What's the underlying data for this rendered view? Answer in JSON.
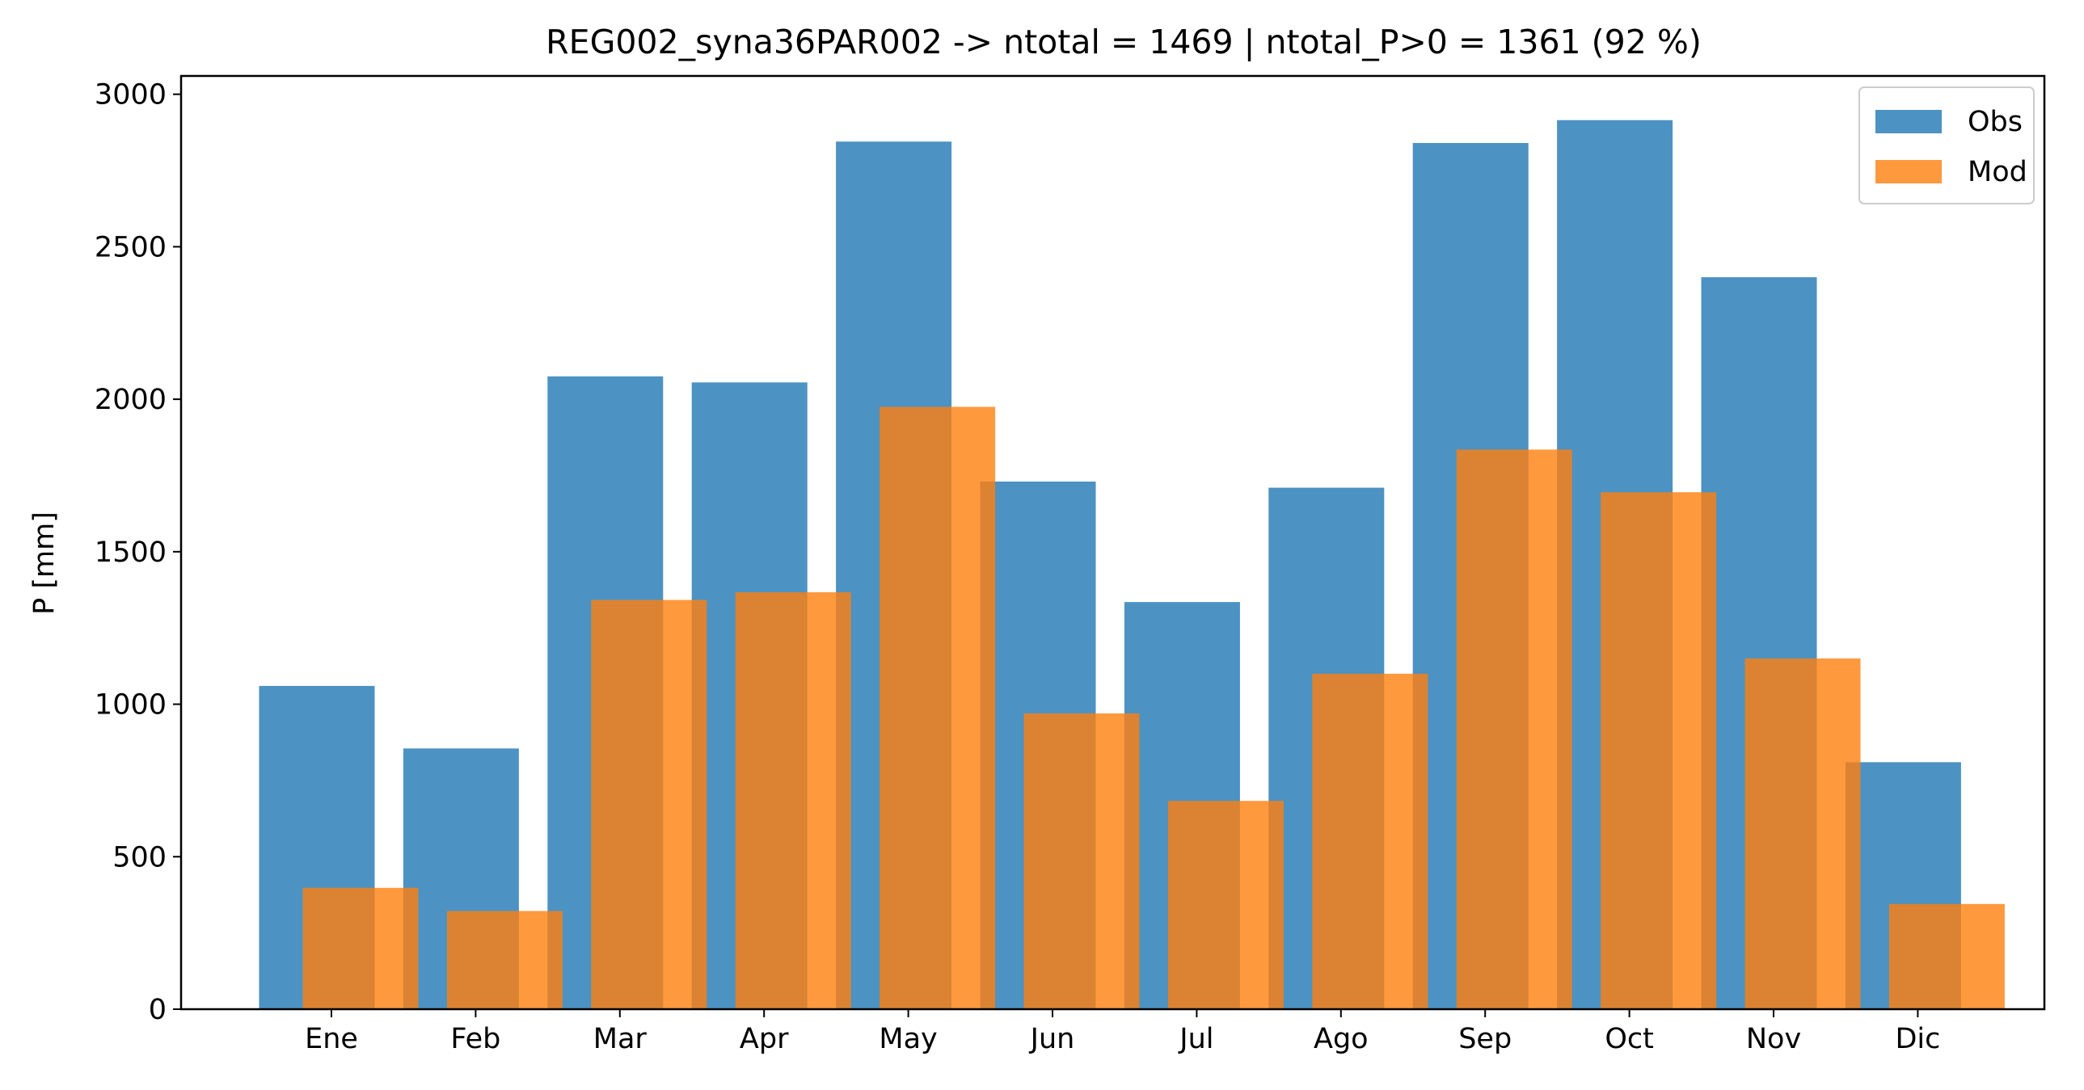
{
  "chart_data": {
    "type": "bar",
    "title": "REG002_syna36PAR002 -> ntotal = 1469 | ntotal_P>0 = 1361 (92 %)",
    "xlabel": "",
    "ylabel": "P [mm]",
    "ylim": [
      0,
      3060
    ],
    "yticks": [
      0,
      500,
      1000,
      1500,
      2000,
      2500,
      3000
    ],
    "categories": [
      "Ene",
      "Feb",
      "Mar",
      "Apr",
      "May",
      "Jun",
      "Jul",
      "Ago",
      "Sep",
      "Oct",
      "Nov",
      "Dic"
    ],
    "series": [
      {
        "name": "Obs",
        "color": "#1f77b4",
        "opacity": 0.8,
        "values": [
          1060,
          855,
          2075,
          2055,
          2845,
          1730,
          1335,
          1710,
          2840,
          2915,
          2400,
          810
        ]
      },
      {
        "name": "Mod",
        "color": "#ff7f0e",
        "opacity": 0.8,
        "values": [
          398,
          322,
          1342,
          1367,
          1975,
          970,
          683,
          1100,
          1835,
          1695,
          1150,
          345
        ]
      }
    ],
    "grid": false,
    "legend": "top-right"
  }
}
